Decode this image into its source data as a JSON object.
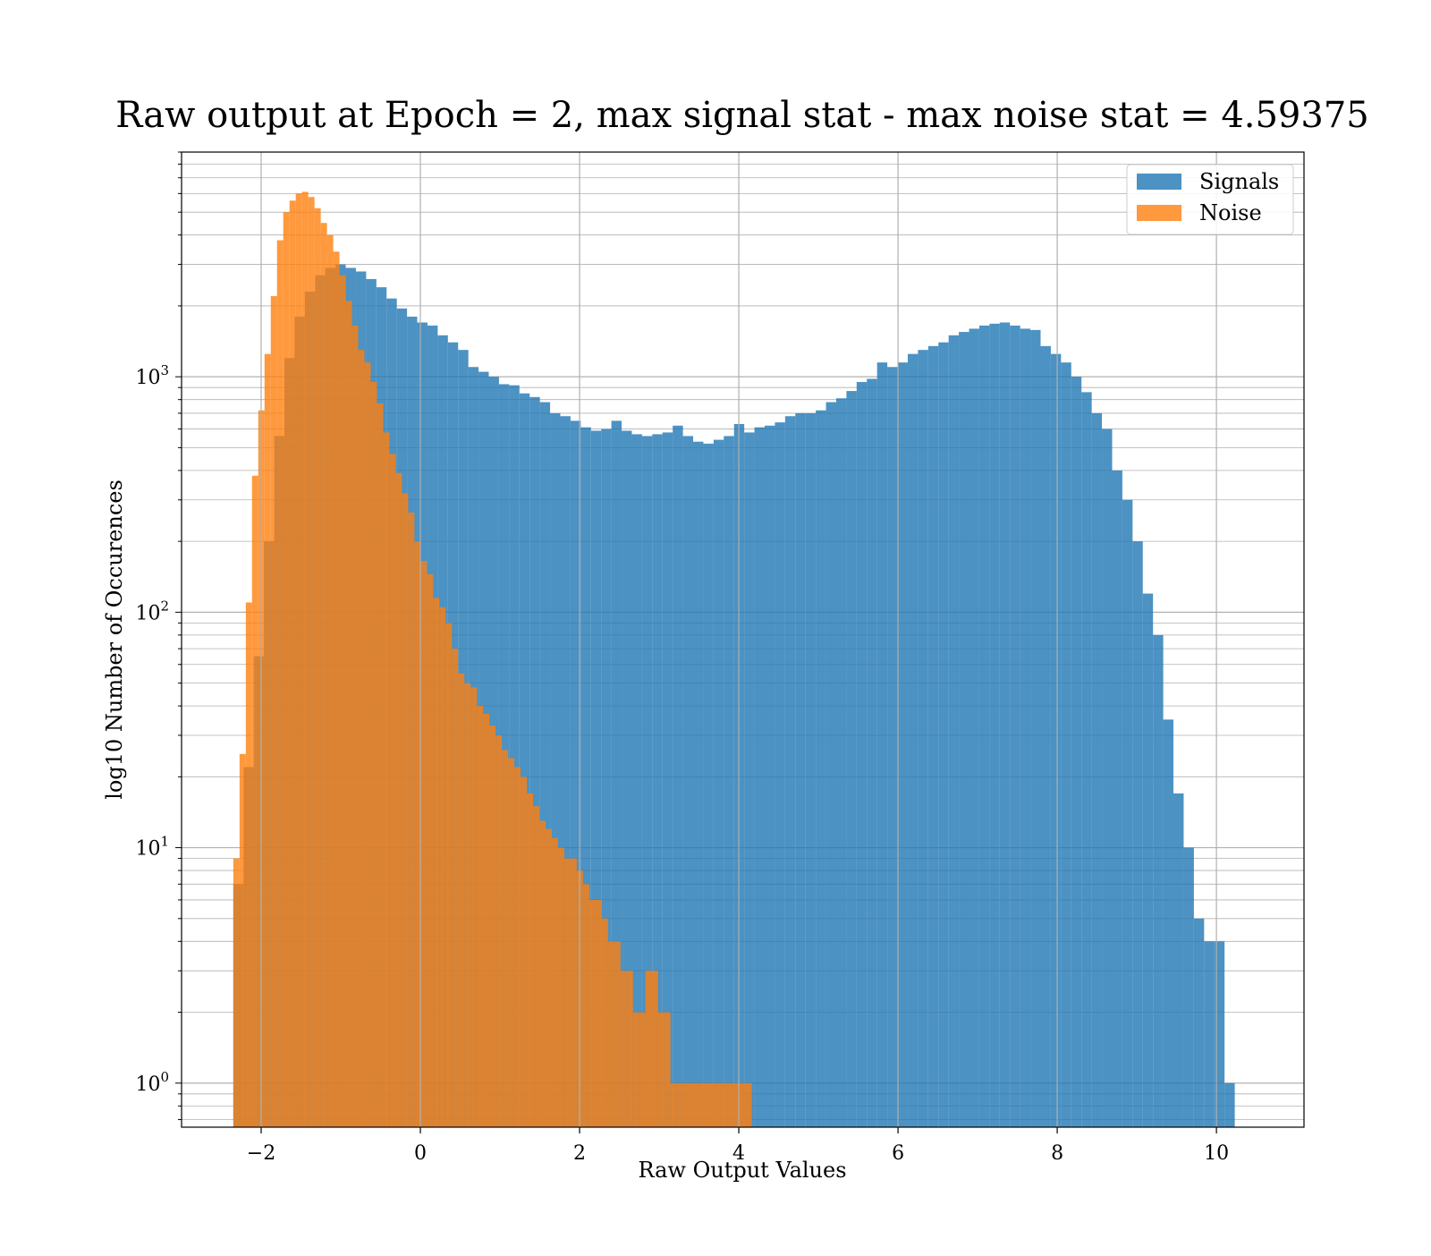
{
  "chart_data": {
    "type": "histogram",
    "title": "Raw output at Epoch = 2, max signal stat - max noise stat = 4.59375",
    "xlabel": "Raw Output Values",
    "ylabel": "log10 Number of Occurences",
    "xlim": [
      -3.0,
      11.1
    ],
    "ylim": [
      0.65,
      9000
    ],
    "yscale": "log",
    "grid": true,
    "legend_position": "top-right",
    "x_ticks": [
      -2,
      0,
      2,
      4,
      6,
      8,
      10
    ],
    "x_tick_labels": [
      "−2",
      "0",
      "2",
      "4",
      "6",
      "8",
      "10"
    ],
    "y_ticks": [
      1,
      10,
      100,
      1000
    ],
    "y_tick_base": "10",
    "y_tick_exponents": [
      "0",
      "1",
      "2",
      "3"
    ],
    "colors": {
      "signals": "#1f77b4",
      "noise": "#ff7f0e"
    },
    "series": [
      {
        "name": "Signals",
        "bin_start": -2.35,
        "bin_width": 0.12837,
        "values": [
          7,
          22,
          65,
          200,
          560,
          1200,
          1800,
          2300,
          2700,
          2900,
          3000,
          2900,
          2800,
          2600,
          2400,
          2150,
          1950,
          1800,
          1700,
          1650,
          1500,
          1400,
          1300,
          1100,
          1050,
          1000,
          930,
          920,
          850,
          820,
          780,
          700,
          680,
          650,
          610,
          590,
          600,
          650,
          590,
          570,
          560,
          570,
          580,
          620,
          560,
          530,
          520,
          540,
          560,
          630,
          580,
          610,
          620,
          640,
          680,
          700,
          700,
          720,
          780,
          810,
          870,
          950,
          980,
          1150,
          1100,
          1150,
          1250,
          1300,
          1350,
          1400,
          1500,
          1550,
          1600,
          1650,
          1680,
          1700,
          1650,
          1600,
          1580,
          1350,
          1250,
          1150,
          1000,
          860,
          700,
          600,
          400,
          300,
          200,
          120,
          80,
          35,
          17,
          10,
          5,
          4,
          4,
          1
        ],
        "opacity": 0.8
      },
      {
        "name": "Noise",
        "bin_start": -2.35,
        "bin_width": 0.07845,
        "values": [
          9,
          25,
          110,
          380,
          720,
          1250,
          2200,
          3800,
          5000,
          5600,
          6000,
          6100,
          5800,
          5200,
          4500,
          4000,
          3400,
          2700,
          2100,
          1650,
          1300,
          1150,
          950,
          770,
          580,
          470,
          390,
          320,
          265,
          200,
          165,
          145,
          115,
          105,
          90,
          70,
          55,
          50,
          48,
          40,
          37,
          33,
          30,
          26,
          24,
          22,
          20,
          17,
          15,
          13,
          12,
          11,
          10,
          9,
          9,
          8,
          7,
          6,
          6,
          5,
          4,
          4,
          3,
          3,
          2,
          2,
          3,
          3,
          2,
          2,
          1,
          1,
          1,
          1,
          1,
          1,
          1,
          1,
          1,
          1,
          1,
          1,
          1
        ],
        "opacity": 0.8
      }
    ]
  }
}
